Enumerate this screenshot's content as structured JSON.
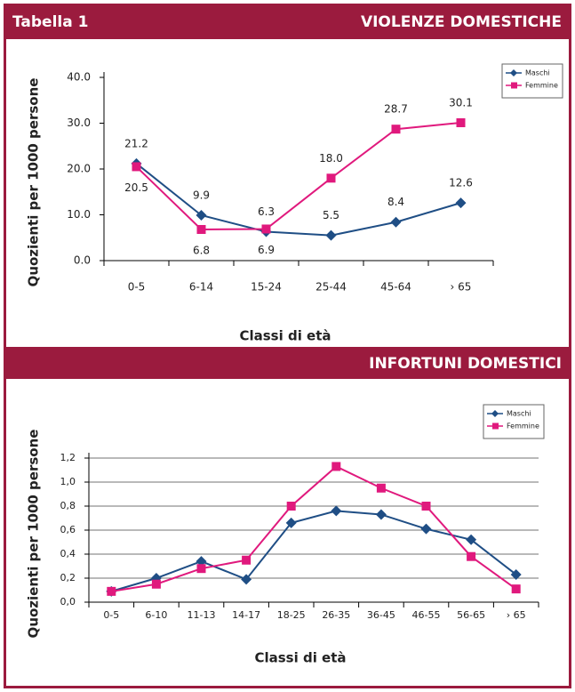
{
  "table_label": "Tabella 1",
  "chart_data": [
    {
      "type": "line",
      "title": "VIOLENZE DOMESTICHE",
      "categories": [
        "0-5",
        "6-14",
        "15-24",
        "25-44",
        "45-64",
        "› 65"
      ],
      "series": [
        {
          "name": "Maschi",
          "color": "#1f4e85",
          "marker": "diamond",
          "values": [
            21.2,
            9.9,
            6.3,
            5.5,
            8.4,
            12.6
          ],
          "value_labels": [
            "21.2",
            "9.9",
            "6.3",
            "5.5",
            "8.4",
            "12.6"
          ]
        },
        {
          "name": "Femmine",
          "color": "#e0197d",
          "marker": "square",
          "values": [
            20.5,
            6.8,
            6.9,
            18.0,
            28.7,
            30.1
          ],
          "value_labels": [
            "20.5",
            "6.8",
            "6.9",
            "18.0",
            "28.7",
            "30.1"
          ]
        }
      ],
      "ylim": [
        0,
        40
      ],
      "yticks": [
        {
          "value": 0,
          "label": "0.0"
        },
        {
          "value": 10,
          "label": "10.0"
        },
        {
          "value": 20,
          "label": "20.0"
        },
        {
          "value": 30,
          "label": "30.0"
        },
        {
          "value": 40,
          "label": "40.0"
        }
      ],
      "xlabel": "Classi di età",
      "ylabel": "Quozienti per 1000 persone",
      "grid": false,
      "legend": "top-right"
    },
    {
      "type": "line",
      "title": "INFORTUNI DOMESTICI",
      "categories": [
        "0-5",
        "6-10",
        "11-13",
        "14-17",
        "18-25",
        "26-35",
        "36-45",
        "46-55",
        "56-65",
        "› 65"
      ],
      "series": [
        {
          "name": "Maschi",
          "color": "#1f4e85",
          "marker": "diamond",
          "values": [
            0.09,
            0.2,
            0.34,
            0.19,
            0.66,
            0.76,
            0.73,
            0.61,
            0.52,
            0.23
          ]
        },
        {
          "name": "Femmine",
          "color": "#e0197d",
          "marker": "square",
          "values": [
            0.09,
            0.15,
            0.28,
            0.35,
            0.8,
            1.13,
            0.95,
            0.8,
            0.38,
            0.11
          ]
        }
      ],
      "ylim": [
        0,
        1.2
      ],
      "yticks": [
        {
          "value": 0,
          "label": "0,0"
        },
        {
          "value": 0.2,
          "label": "0,2"
        },
        {
          "value": 0.4,
          "label": "0,4"
        },
        {
          "value": 0.6,
          "label": "0,6"
        },
        {
          "value": 0.8,
          "label": "0,8"
        },
        {
          "value": 1.0,
          "label": "1,0"
        },
        {
          "value": 1.2,
          "label": "1,2"
        }
      ],
      "xlabel": "Classi di età",
      "ylabel": "Quozienti per 1000 persone",
      "grid": true,
      "legend": "top-right"
    }
  ]
}
